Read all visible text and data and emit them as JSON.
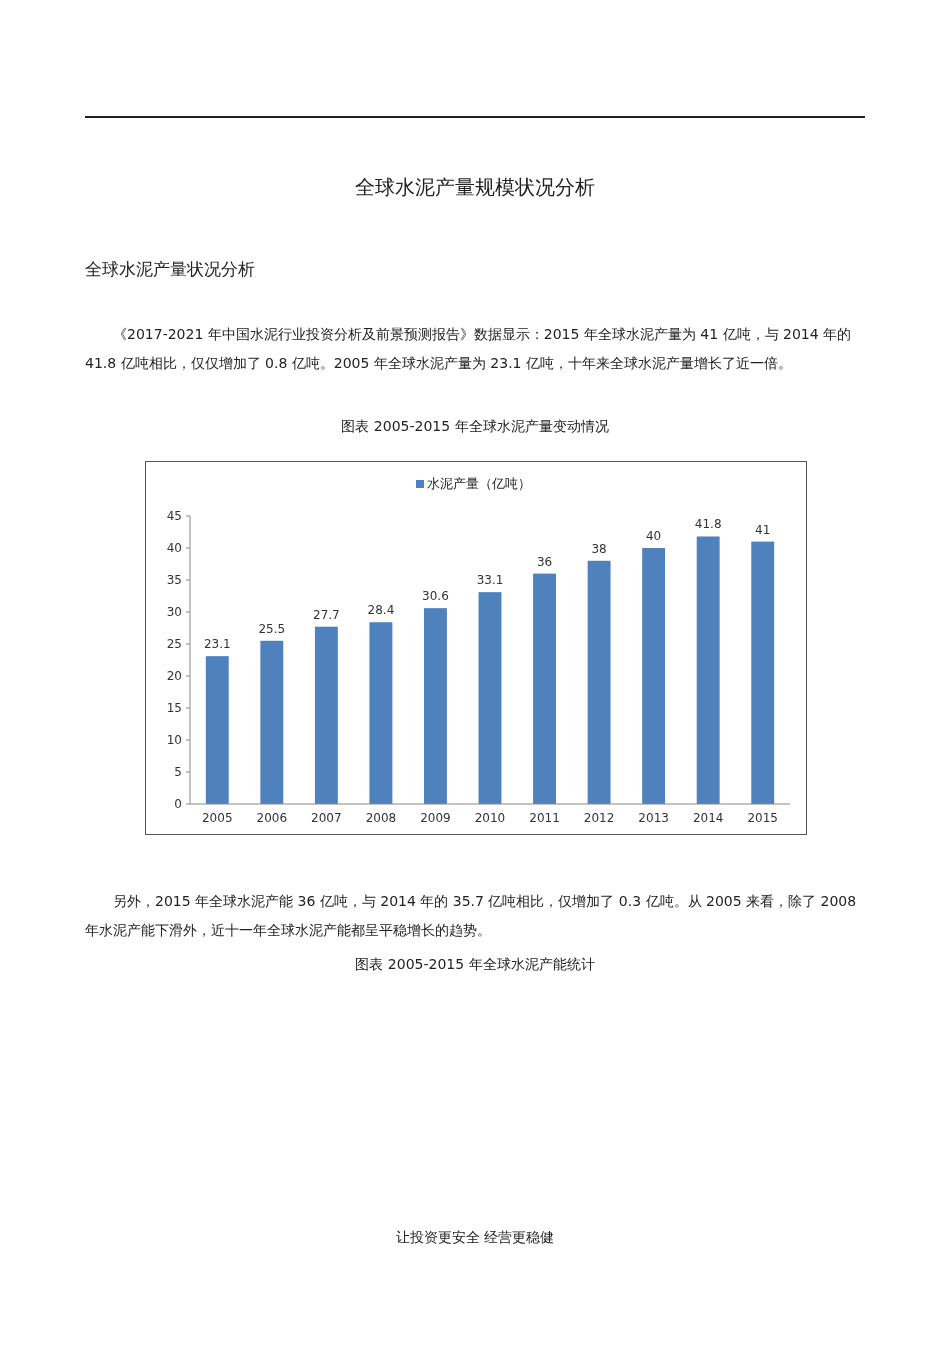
{
  "chart_data": {
    "type": "bar",
    "title": "图表 2005-2015 年全球水泥产量变动情况",
    "categories": [
      "2005",
      "2006",
      "2007",
      "2008",
      "2009",
      "2010",
      "2011",
      "2012",
      "2013",
      "2014",
      "2015"
    ],
    "series": [
      {
        "name": "水泥产量（亿吨）",
        "color": "#4f81bd",
        "values": [
          23.1,
          25.5,
          27.7,
          28.4,
          30.6,
          33.1,
          36,
          38,
          40,
          41.8,
          41
        ]
      }
    ],
    "ylim": [
      0,
      45
    ],
    "yticks": [
      0,
      5,
      10,
      15,
      20,
      25,
      30,
      35,
      40,
      45
    ],
    "grid": false,
    "legend": "top",
    "data_labels": true,
    "annotations": [
      "全球水泥产量规模状况分析",
      "全球水泥产量状况分析",
      "《2017-2021 年中国水泥行业投资分析及前景预测报告》数据显示：2015 年全球水泥产量为 41 亿吨，与 2014 年的 41.8 亿吨相比，仅仅增加了 0.8 亿吨。2005 年全球水泥产量为 23.1 亿吨，十年来全球水泥产量增长了近一倍。",
      "另外，2015 年全球水泥产能 36 亿吨，与 2014 年的 35.7 亿吨相比，仅增加了 0.3 亿吨。从 2005 来看，除了 2008 年水泥产能下滑外，近十一年全球水泥产能都呈平稳增长的趋势。",
      "图表 2005-2015 年全球水泥产能统计",
      "让投资更安全 经营更稳健"
    ]
  }
}
